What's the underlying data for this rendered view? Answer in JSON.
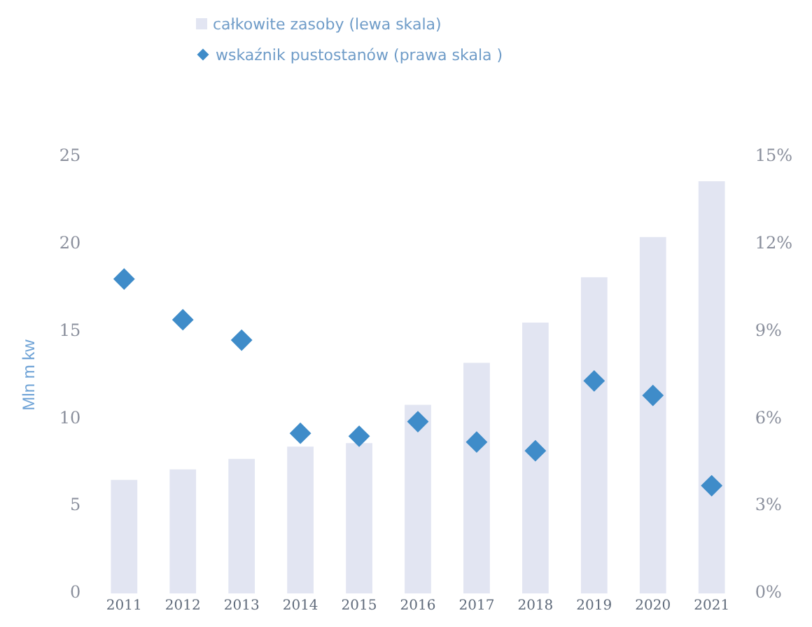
{
  "chart_data": {
    "type": "bar",
    "ylabel": "Mln m kw",
    "categories": [
      "2011",
      "2012",
      "2013",
      "2014",
      "2015",
      "2016",
      "2017",
      "2018",
      "2019",
      "2020",
      "2021"
    ],
    "series": [
      {
        "name": "całkowite zasoby (lewa skala)",
        "color": "#e2e5f2",
        "values": [
          6.5,
          7.1,
          7.7,
          8.4,
          8.6,
          10.8,
          13.2,
          15.5,
          18.1,
          20.4,
          23.6
        ]
      },
      {
        "name": "wskaźnik pustostanów (prawa skala )",
        "type": "scatter",
        "axis": "y2",
        "color": "#3f8cc9",
        "marker": "diamond",
        "values": [
          10.8,
          9.4,
          8.7,
          5.5,
          5.4,
          5.9,
          5.2,
          4.9,
          7.3,
          6.8,
          3.7
        ]
      }
    ],
    "ylim": [
      0,
      25
    ],
    "yticks": [
      0,
      5,
      10,
      15,
      20,
      25
    ],
    "y2lim": [
      0,
      15
    ],
    "y2ticks": [
      {
        "value": 0,
        "label": "0%"
      },
      {
        "value": 3,
        "label": "3%"
      },
      {
        "value": 6,
        "label": "6%"
      },
      {
        "value": 9,
        "label": "9%"
      },
      {
        "value": 12,
        "label": "12%"
      },
      {
        "value": 15,
        "label": "15%"
      }
    ],
    "grid": false,
    "legend": "top"
  }
}
